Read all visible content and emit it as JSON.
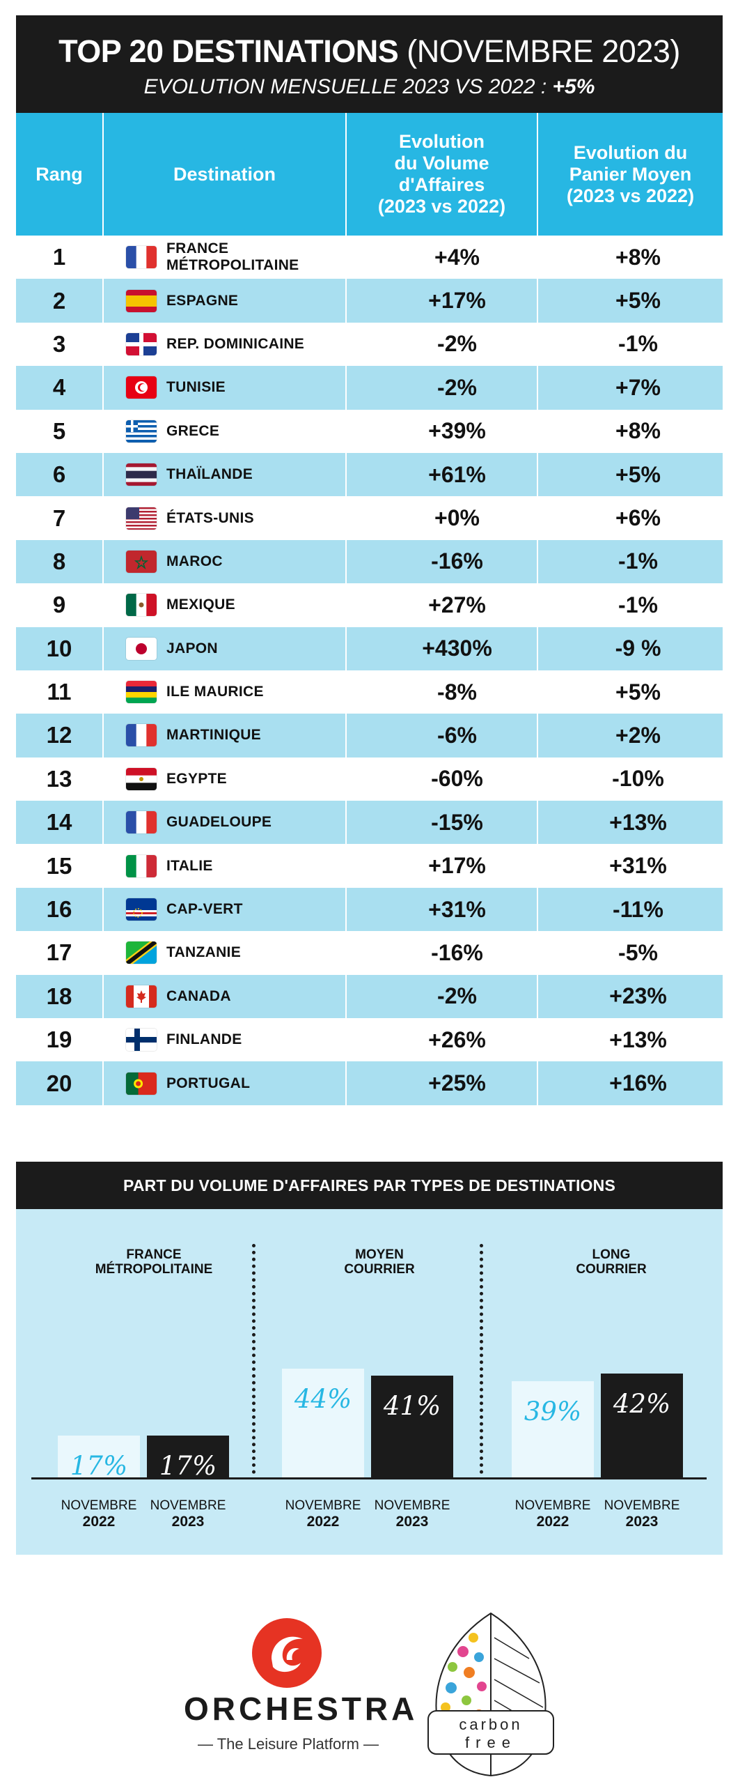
{
  "header": {
    "title_main": "TOP 20 DESTINATIONS",
    "title_period": "(NOVEMBRE 2023)",
    "subtitle": "EVOLUTION MENSUELLE 2023 VS 2022 :",
    "subtitle_value": "+5%"
  },
  "table": {
    "headers": {
      "rank": "Rang",
      "destination": "Destination",
      "volume": [
        "Evolution",
        "du Volume",
        "d'Affaires",
        "(2023 vs 2022)"
      ],
      "basket": [
        "Evolution du",
        "Panier Moyen",
        "(2023 vs 2022)"
      ]
    },
    "rows": [
      {
        "rank": "1",
        "destination": "France Métropolitaine",
        "volume": "+4%",
        "basket": "+8%",
        "flag": "france"
      },
      {
        "rank": "2",
        "destination": "Espagne",
        "volume": "+17%",
        "basket": "+5%",
        "flag": "spain"
      },
      {
        "rank": "3",
        "destination": "Rep. Dominicaine",
        "volume": "-2%",
        "basket": "-1%",
        "flag": "dominican"
      },
      {
        "rank": "4",
        "destination": "Tunisie",
        "volume": "-2%",
        "basket": "+7%",
        "flag": "tunisia"
      },
      {
        "rank": "5",
        "destination": "Grece",
        "volume": "+39%",
        "basket": "+8%",
        "flag": "greece"
      },
      {
        "rank": "6",
        "destination": "Thaïlande",
        "volume": "+61%",
        "basket": "+5%",
        "flag": "thailand"
      },
      {
        "rank": "7",
        "destination": "États-Unis",
        "volume": "+0%",
        "basket": "+6%",
        "flag": "usa"
      },
      {
        "rank": "8",
        "destination": "Maroc",
        "volume": "-16%",
        "basket": "-1%",
        "flag": "morocco"
      },
      {
        "rank": "9",
        "destination": "Mexique",
        "volume": "+27%",
        "basket": "-1%",
        "flag": "mexico"
      },
      {
        "rank": "10",
        "destination": "Japon",
        "volume": "+430%",
        "basket": "-9 %",
        "flag": "japan"
      },
      {
        "rank": "11",
        "destination": "Ile Maurice",
        "volume": "-8%",
        "basket": "+5%",
        "flag": "mauritius"
      },
      {
        "rank": "12",
        "destination": "Martinique",
        "volume": "-6%",
        "basket": "+2%",
        "flag": "france"
      },
      {
        "rank": "13",
        "destination": "Egypte",
        "volume": "-60%",
        "basket": "-10%",
        "flag": "egypt"
      },
      {
        "rank": "14",
        "destination": "Guadeloupe",
        "volume": "-15%",
        "basket": "+13%",
        "flag": "france"
      },
      {
        "rank": "15",
        "destination": "Italie",
        "volume": "+17%",
        "basket": "+31%",
        "flag": "italy"
      },
      {
        "rank": "16",
        "destination": "Cap-Vert",
        "volume": "+31%",
        "basket": "-11%",
        "flag": "capeverde"
      },
      {
        "rank": "17",
        "destination": "Tanzanie",
        "volume": "-16%",
        "basket": "-5%",
        "flag": "tanzania"
      },
      {
        "rank": "18",
        "destination": "Canada",
        "volume": "-2%",
        "basket": "+23%",
        "flag": "canada"
      },
      {
        "rank": "19",
        "destination": "Finlande",
        "volume": "+26%",
        "basket": "+13%",
        "flag": "finland"
      },
      {
        "rank": "20",
        "destination": "Portugal",
        "volume": "+25%",
        "basket": "+16%",
        "flag": "portugal"
      }
    ]
  },
  "panel": {
    "title": "PART DU VOLUME D'AFFAIRES PAR TYPES DE DESTINATIONS"
  },
  "chart_data": {
    "type": "bar",
    "title": "PART DU VOLUME D'AFFAIRES PAR TYPES DE DESTINATIONS",
    "unit": "%",
    "groups": [
      {
        "name": [
          "FRANCE",
          "MÉTROPOLITAINE"
        ],
        "values": [
          17,
          17
        ],
        "labels": [
          "17%",
          "17%"
        ]
      },
      {
        "name": [
          "MOYEN",
          "COURRIER"
        ],
        "values": [
          44,
          41
        ],
        "labels": [
          "44%",
          "41%"
        ]
      },
      {
        "name": [
          "LONG",
          "COURRIER"
        ],
        "values": [
          39,
          42
        ],
        "labels": [
          "39%",
          "42%"
        ]
      }
    ],
    "series": [
      {
        "month": "NOVEMBRE",
        "year": "2022",
        "color": "#eaf8fd",
        "text_color": "#27b7e3"
      },
      {
        "month": "NOVEMBRE",
        "year": "2023",
        "color": "#1b1b1b",
        "text_color": "#ffffff"
      }
    ]
  },
  "footer": {
    "brand": "ORCHESTRA",
    "tagline": "— The Leisure Platform —",
    "partner_line1": "carbon",
    "partner_line2": "free"
  },
  "colors": {
    "accent": "#27b7e3",
    "row_alt": "#a9dff0",
    "panel_bg": "#c7eaf6",
    "dark": "#1b1b1b",
    "brand_red": "#e63323"
  }
}
